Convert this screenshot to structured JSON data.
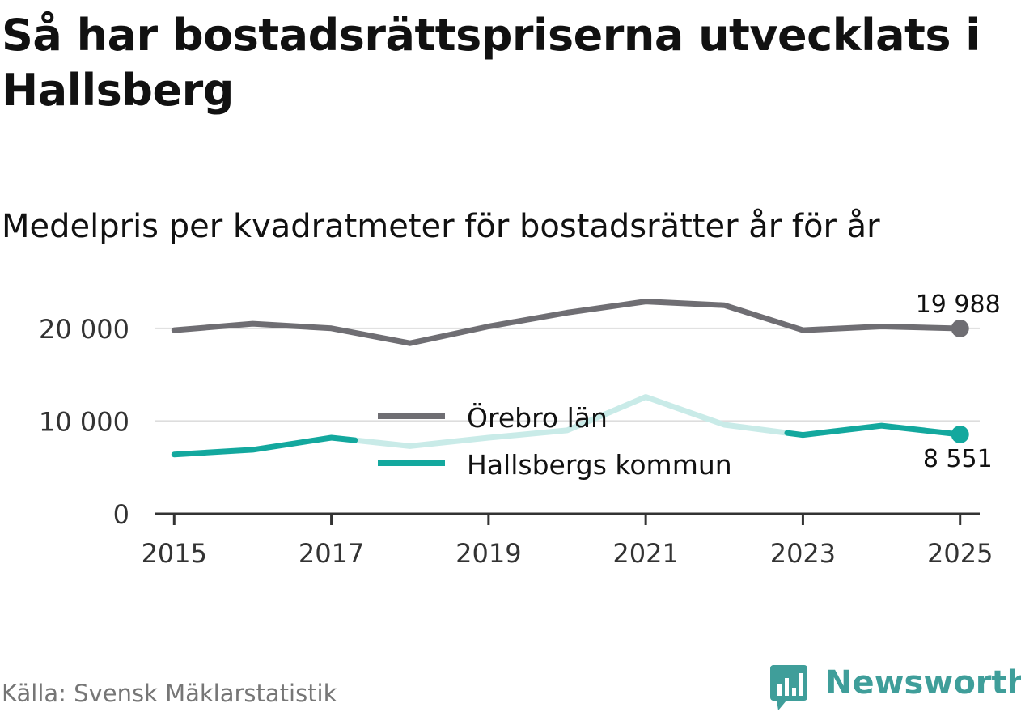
{
  "header": {
    "title": "Så har bostadsrättspriserna utvecklats i Hallsberg",
    "subtitle": "Medelpris per kvadratmeter för bostadsrätter år för år"
  },
  "footer": {
    "source": "Källa: Svensk Mäklarstatistik",
    "brand": "Newsworthy"
  },
  "colors": {
    "orebro": "#6f6e73",
    "hallsberg": "#13a89e",
    "hallsberg_faded": "#c9ebe8",
    "grid": "#dddddd",
    "axis": "#333333",
    "brand": "#3f9e9a"
  },
  "chart_data": {
    "type": "line",
    "title": "Så har bostadsrättspriserna utvecklats i Hallsberg",
    "subtitle": "Medelpris per kvadratmeter för bostadsrätter år för år",
    "xlabel": "",
    "ylabel": "",
    "x": [
      2015,
      2016,
      2017,
      2018,
      2019,
      2020,
      2021,
      2022,
      2023,
      2024,
      2025
    ],
    "xticks": [
      2015,
      2017,
      2019,
      2021,
      2023,
      2025
    ],
    "xtick_labels": [
      "2015",
      "2017",
      "2019",
      "2021",
      "2023",
      "2025"
    ],
    "xlim": [
      2014.75,
      2025.25
    ],
    "ylim": [
      0,
      24000
    ],
    "yticks": [
      0,
      10000,
      20000
    ],
    "ytick_labels": [
      "0",
      "10 000",
      "20 000"
    ],
    "grid": true,
    "legend_position": "center",
    "series": [
      {
        "name": "Örebro län",
        "values": [
          19800,
          20500,
          20000,
          18400,
          20200,
          21700,
          22900,
          22500,
          19800,
          20200,
          19988
        ],
        "end_label": "19 988"
      },
      {
        "name": "Hallsbergs kommun",
        "values": [
          6400,
          6900,
          8200,
          7300,
          8200,
          9000,
          12600,
          9600,
          8500,
          9500,
          8551
        ],
        "end_label": "8 551",
        "faded_range": [
          2017.3,
          2022.8
        ]
      }
    ],
    "legend": [
      "Örebro län",
      "Hallsbergs kommun"
    ]
  }
}
